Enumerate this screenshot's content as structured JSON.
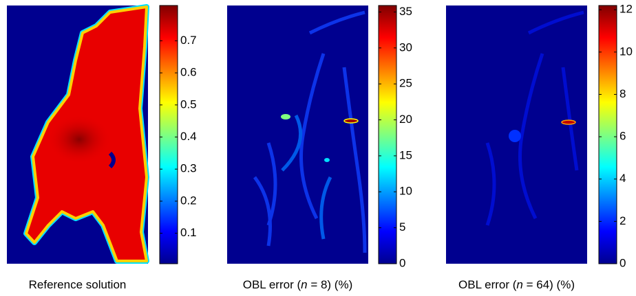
{
  "chart_data": [
    {
      "type": "heatmap",
      "title_parts": [
        "Reference solution"
      ],
      "colormap": "jet",
      "clim": [
        0.005,
        0.81
      ],
      "ticks": [
        0.1,
        0.2,
        0.3,
        0.4,
        0.5,
        0.6,
        0.7
      ]
    },
    {
      "type": "heatmap",
      "title_parts": [
        "OBL error (",
        "n",
        " = 8) (%)"
      ],
      "colormap": "jet",
      "clim": [
        0,
        35.9
      ],
      "ticks": [
        0,
        5,
        10,
        15,
        20,
        25,
        30,
        35
      ]
    },
    {
      "type": "heatmap",
      "title_parts": [
        "OBL error (",
        "n",
        " = 64) (%)"
      ],
      "colormap": "jet",
      "clim": [
        0,
        12.2
      ],
      "ticks": [
        0,
        2,
        4,
        6,
        8,
        10,
        12
      ]
    }
  ]
}
